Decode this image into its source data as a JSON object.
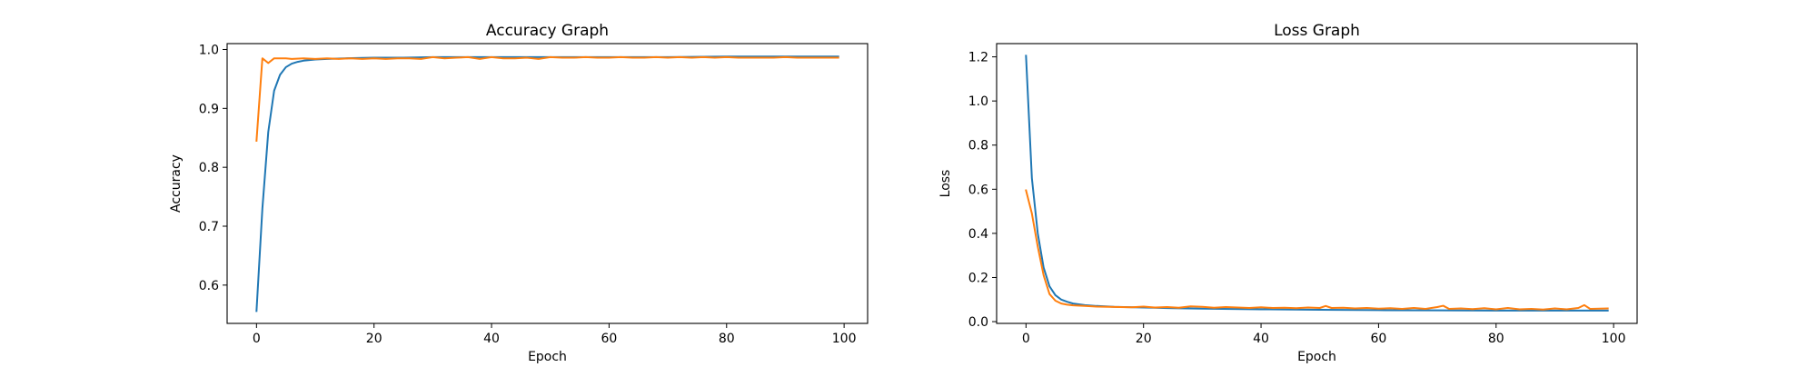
{
  "chart_data": [
    {
      "type": "line",
      "title": "Accuracy Graph",
      "xlabel": "Epoch",
      "ylabel": "Accuracy",
      "xlim": [
        -5,
        104
      ],
      "ylim": [
        0.535,
        1.01
      ],
      "xticks": [
        0,
        20,
        40,
        60,
        80,
        100
      ],
      "yticks": [
        0.6,
        0.7,
        0.8,
        0.9,
        1.0
      ],
      "ytick_labels": [
        "0.6",
        "0.7",
        "0.8",
        "0.9",
        "1.0"
      ],
      "grid": false,
      "legend": "none",
      "series": [
        {
          "color": "#1f77b4",
          "x": [
            0,
            1,
            2,
            3,
            4,
            5,
            6,
            7,
            8,
            9,
            10,
            12,
            15,
            20,
            25,
            30,
            40,
            50,
            60,
            70,
            80,
            90,
            99
          ],
          "y": [
            0.556,
            0.73,
            0.86,
            0.93,
            0.957,
            0.97,
            0.976,
            0.979,
            0.981,
            0.982,
            0.983,
            0.984,
            0.985,
            0.986,
            0.986,
            0.987,
            0.987,
            0.987,
            0.987,
            0.987,
            0.988,
            0.988,
            0.988
          ]
        },
        {
          "color": "#ff7f0e",
          "x": [
            0,
            1,
            2,
            3,
            4,
            5,
            6,
            8,
            10,
            12,
            14,
            16,
            18,
            20,
            22,
            24,
            26,
            28,
            30,
            32,
            34,
            36,
            38,
            40,
            42,
            44,
            46,
            48,
            50,
            52,
            54,
            56,
            58,
            60,
            62,
            64,
            66,
            68,
            70,
            72,
            74,
            76,
            78,
            80,
            82,
            84,
            86,
            88,
            90,
            92,
            94,
            96,
            99
          ],
          "y": [
            0.845,
            0.985,
            0.977,
            0.985,
            0.985,
            0.985,
            0.984,
            0.985,
            0.984,
            0.985,
            0.984,
            0.985,
            0.984,
            0.985,
            0.984,
            0.985,
            0.985,
            0.984,
            0.987,
            0.985,
            0.986,
            0.987,
            0.984,
            0.987,
            0.985,
            0.985,
            0.986,
            0.984,
            0.987,
            0.986,
            0.986,
            0.987,
            0.986,
            0.986,
            0.987,
            0.986,
            0.986,
            0.987,
            0.986,
            0.987,
            0.986,
            0.987,
            0.986,
            0.987,
            0.986,
            0.986,
            0.986,
            0.986,
            0.987,
            0.986,
            0.986,
            0.986,
            0.986
          ]
        }
      ]
    },
    {
      "type": "line",
      "title": "Loss Graph",
      "xlabel": "Epoch",
      "ylabel": "Loss",
      "xlim": [
        -5,
        104
      ],
      "ylim": [
        -0.008,
        1.26
      ],
      "xticks": [
        0,
        20,
        40,
        60,
        80,
        100
      ],
      "yticks": [
        0.0,
        0.2,
        0.4,
        0.6,
        0.8,
        1.0,
        1.2
      ],
      "ytick_labels": [
        "0.0",
        "0.2",
        "0.4",
        "0.6",
        "0.8",
        "1.0",
        "1.2"
      ],
      "grid": false,
      "legend": "none",
      "series": [
        {
          "color": "#1f77b4",
          "x": [
            0,
            1,
            2,
            3,
            4,
            5,
            6,
            7,
            8,
            10,
            12,
            15,
            20,
            25,
            30,
            40,
            50,
            60,
            70,
            80,
            90,
            99
          ],
          "y": [
            1.205,
            0.65,
            0.4,
            0.245,
            0.16,
            0.12,
            0.1,
            0.09,
            0.082,
            0.075,
            0.071,
            0.067,
            0.064,
            0.061,
            0.059,
            0.056,
            0.054,
            0.052,
            0.051,
            0.05,
            0.05,
            0.05
          ]
        },
        {
          "color": "#ff7f0e",
          "x": [
            0,
            1,
            2,
            3,
            4,
            5,
            6,
            7,
            8,
            10,
            12,
            14,
            16,
            18,
            20,
            22,
            24,
            26,
            28,
            30,
            32,
            34,
            36,
            38,
            40,
            42,
            44,
            46,
            48,
            50,
            51,
            52,
            54,
            56,
            58,
            60,
            62,
            64,
            66,
            68,
            70,
            71,
            72,
            74,
            76,
            78,
            80,
            82,
            84,
            86,
            88,
            90,
            92,
            94,
            95,
            96,
            99
          ],
          "y": [
            0.595,
            0.49,
            0.34,
            0.21,
            0.125,
            0.095,
            0.082,
            0.077,
            0.074,
            0.071,
            0.068,
            0.067,
            0.066,
            0.065,
            0.068,
            0.064,
            0.066,
            0.063,
            0.069,
            0.067,
            0.063,
            0.066,
            0.064,
            0.062,
            0.065,
            0.062,
            0.063,
            0.061,
            0.064,
            0.062,
            0.071,
            0.062,
            0.063,
            0.06,
            0.062,
            0.059,
            0.061,
            0.058,
            0.062,
            0.058,
            0.066,
            0.072,
            0.058,
            0.06,
            0.057,
            0.061,
            0.056,
            0.062,
            0.056,
            0.058,
            0.055,
            0.06,
            0.056,
            0.062,
            0.075,
            0.058,
            0.06
          ]
        }
      ]
    }
  ]
}
